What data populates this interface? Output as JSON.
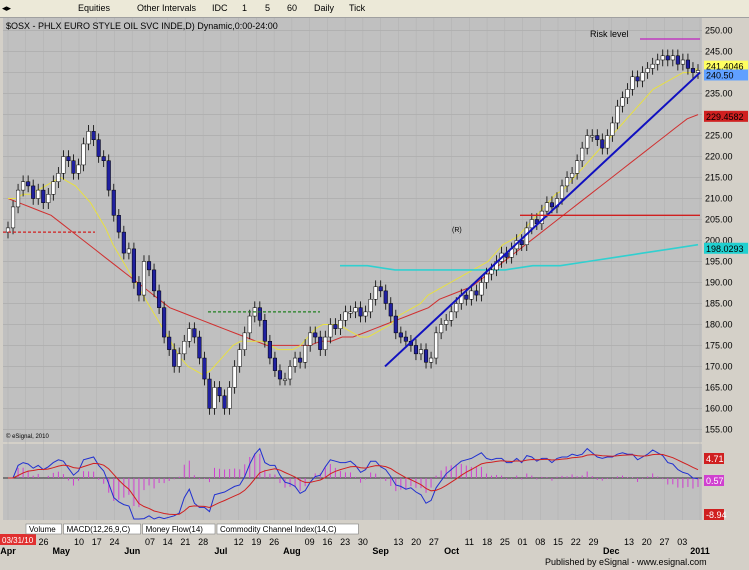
{
  "toolbar": {
    "items": [
      {
        "name": "equities-menu",
        "label": "Equities"
      },
      {
        "name": "other-intervals-menu",
        "label": "Other Intervals"
      },
      {
        "name": "interval-idc",
        "label": "IDC"
      },
      {
        "name": "interval-1",
        "label": "1"
      },
      {
        "name": "interval-5",
        "label": "5"
      },
      {
        "name": "interval-60",
        "label": "60"
      },
      {
        "name": "interval-daily",
        "label": "Daily"
      },
      {
        "name": "interval-tick",
        "label": "Tick"
      }
    ]
  },
  "chart_data": {
    "type": "candlestick",
    "title": "$OSX - PHLX EURO STYLE OIL SVC INDE,D) Dynamic,0:00-24:00",
    "price_ylim": [
      152,
      253
    ],
    "price_ticks": [
      "250.00",
      "245.00",
      "240.00",
      "235.00",
      "230.00",
      "225.00",
      "220.00",
      "215.00",
      "210.00",
      "205.00",
      "200.00",
      "195.00",
      "190.00",
      "185.00",
      "180.00",
      "175.00",
      "170.00",
      "165.00",
      "160.00",
      "155.00"
    ],
    "x_ticks": [
      "Apr",
      "19",
      "26",
      "May",
      "10",
      "17",
      "24",
      "Jun",
      "07",
      "14",
      "21",
      "28",
      "Jul",
      "12",
      "19",
      "26",
      "Aug",
      "09",
      "16",
      "23",
      "30",
      "Sep",
      "13",
      "20",
      "27",
      "Oct",
      "11",
      "18",
      "25",
      "01",
      "08",
      "15",
      "22",
      "29",
      "Dec",
      "13",
      "20",
      "27",
      "03",
      "2011"
    ],
    "month_ticks": [
      "Apr",
      "May",
      "Jun",
      "Jul",
      "Aug",
      "Sep",
      "Oct",
      "Nov",
      "Dec",
      "2011"
    ],
    "start_label": "03/31/10",
    "value_labels": [
      {
        "name": "upper-price-label",
        "text": "241.4046",
        "color": "#ffff60"
      },
      {
        "name": "last-price-label",
        "text": "240.50",
        "color": "#60a0ff"
      },
      {
        "name": "ma200-label",
        "text": "229.4582",
        "color": "#d02020"
      },
      {
        "name": "ma50-label",
        "text": "198.0293",
        "color": "#20d0d0"
      }
    ],
    "macd_labels": [
      {
        "name": "macd-value-label",
        "text": "4.71",
        "color": "#d02020"
      },
      {
        "name": "macd-signal-label",
        "text": "0.57",
        "color": "#d040d0"
      },
      {
        "name": "macd-low-label",
        "text": "-8.94",
        "color": "#d02020"
      }
    ],
    "annotation": "Risk level",
    "seq_label": "(R)",
    "copyright": "© eSignal, 2010",
    "tabs": [
      "Volume",
      "MACD(12,26,9,C)",
      "Money Flow(14)",
      "Commodity Channel Index(14,C)"
    ],
    "footer": "Published by eSignal - www.esignal.com",
    "closes": [
      203,
      208,
      212,
      214,
      213,
      210,
      212,
      209,
      211,
      214,
      216,
      220,
      219,
      216,
      218,
      223,
      226,
      224,
      220,
      219,
      212,
      206,
      202,
      197,
      198,
      190,
      187,
      195,
      193,
      188,
      184,
      177,
      174,
      170,
      173,
      176,
      179,
      177,
      172,
      167,
      160,
      165,
      163,
      160,
      165,
      170,
      174,
      178,
      182,
      184,
      181,
      176,
      172,
      169,
      167,
      167,
      170,
      172,
      171,
      175,
      178,
      177,
      174,
      177,
      180,
      179,
      181,
      183,
      183,
      184,
      182,
      183,
      186,
      189,
      188,
      185,
      182,
      178,
      177,
      176,
      175,
      173,
      174,
      171,
      172,
      178,
      180,
      181,
      183,
      185,
      187,
      186,
      188,
      187,
      190,
      192,
      193,
      195,
      197,
      196,
      198,
      200,
      199,
      203,
      205,
      204,
      207,
      209,
      208,
      210,
      213,
      215,
      216,
      219,
      222,
      225,
      225,
      224,
      222,
      225,
      228,
      232,
      234,
      236,
      239,
      238,
      240,
      241,
      242,
      243,
      244,
      243,
      244,
      242,
      243,
      241,
      240,
      240.5
    ],
    "ma_fast": [
      210,
      210,
      211,
      211,
      212,
      213,
      214,
      215,
      214,
      213,
      211,
      209,
      206,
      203,
      199,
      196,
      193,
      190,
      187,
      184,
      181,
      178,
      175,
      172,
      170,
      169,
      168,
      169,
      171,
      173,
      175,
      176,
      176,
      176,
      176,
      175,
      174,
      174,
      174,
      175,
      177,
      179,
      180,
      180,
      180,
      179,
      178,
      177,
      177,
      178,
      179,
      180,
      182,
      183,
      184,
      185,
      187,
      188,
      189,
      190,
      191,
      192,
      193,
      194,
      195,
      197,
      199,
      200,
      201,
      203,
      205,
      207,
      209,
      211,
      212,
      214,
      216,
      218,
      220,
      222,
      224,
      226,
      228,
      230,
      232,
      234,
      236,
      237,
      238,
      239,
      240,
      240,
      241
    ],
    "ma_slow": [
      210,
      209,
      208,
      207,
      206,
      204,
      202,
      200,
      198,
      196,
      194,
      192,
      190,
      188,
      186,
      184,
      183,
      182,
      181,
      180,
      179,
      178,
      177,
      176,
      175,
      175,
      175,
      175,
      175,
      176,
      176,
      177,
      177,
      178,
      179,
      180,
      181,
      182,
      183,
      184,
      186,
      187,
      188,
      189,
      191,
      193,
      195,
      197,
      199,
      201,
      203,
      205,
      207,
      209,
      211,
      213,
      215,
      217,
      219,
      221,
      223,
      225,
      227,
      229,
      230
    ],
    "ma50": [
      194,
      194,
      193,
      193,
      193,
      193,
      193,
      194,
      194,
      195,
      196,
      197,
      198,
      199
    ]
  }
}
